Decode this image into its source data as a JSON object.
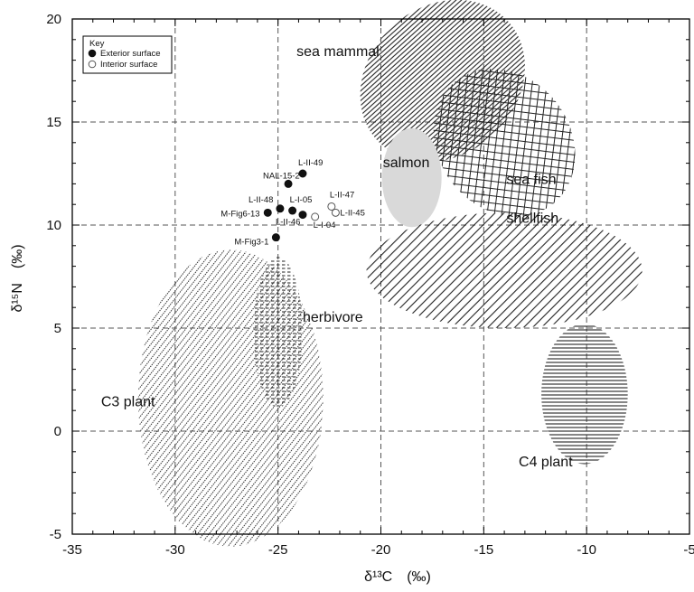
{
  "chart_data": {
    "type": "scatter",
    "title": "",
    "xlabel": "δ¹³C　(‰)",
    "ylabel": "δ¹⁵N　(‰)",
    "xlim": [
      -35,
      -5
    ],
    "ylim": [
      -5,
      20
    ],
    "xticks": [
      -35,
      -30,
      -25,
      -20,
      -15,
      -10,
      -5
    ],
    "yticks": [
      -5,
      0,
      5,
      10,
      15,
      20
    ],
    "xtick_labels": [
      "-35",
      "-30",
      "-25",
      "-20",
      "-15",
      "-10",
      "-5"
    ],
    "ytick_labels": [
      "-5",
      "0",
      "5",
      "10",
      "15",
      "20"
    ],
    "grid": true,
    "legend": {
      "title": "Key",
      "placement": "top-left",
      "entries": [
        {
          "label": "Exterior surface",
          "marker": "filled-circle"
        },
        {
          "label": "Interior surface",
          "marker": "open-circle"
        }
      ]
    },
    "series": [
      {
        "name": "Exterior surface",
        "marker": "filled",
        "points": [
          {
            "label": "L-II-49",
            "x": -23.8,
            "y": 12.5
          },
          {
            "label": "NAL-15-2",
            "x": -24.5,
            "y": 12.0
          },
          {
            "label": "L-II-48",
            "x": -24.9,
            "y": 10.8
          },
          {
            "label": "L-I-05",
            "x": -24.3,
            "y": 10.7
          },
          {
            "label": "L-II-46",
            "x": -23.8,
            "y": 10.5
          },
          {
            "label": "M-Fig6-13",
            "x": -25.5,
            "y": 10.6
          },
          {
            "label": "M-Fig3-1",
            "x": -25.1,
            "y": 9.4
          }
        ]
      },
      {
        "name": "Interior surface",
        "marker": "open",
        "points": [
          {
            "label": "L-II-47",
            "x": -22.4,
            "y": 10.9
          },
          {
            "label": "L-II-45",
            "x": -22.2,
            "y": 10.6
          },
          {
            "label": "L-I-04",
            "x": -23.2,
            "y": 10.4
          }
        ]
      }
    ],
    "regions": [
      {
        "label": "sea mammal",
        "pattern": "horizontal-hatch",
        "center": [
          -17.0,
          17.0
        ],
        "radii": [
          4.3,
          3.6
        ],
        "rotation": 42
      },
      {
        "label": "sea fish",
        "pattern": "cross-hatch",
        "center": [
          -14.0,
          14.0
        ],
        "radii": [
          3.2,
          3.8
        ],
        "rotation": 38
      },
      {
        "label": "salmon",
        "pattern": "grey-fill",
        "center": [
          -18.5,
          12.3
        ],
        "radii": [
          1.45,
          2.4
        ],
        "rotation": 0
      },
      {
        "label": "shellfish",
        "pattern": "diagonal-hatch",
        "center": [
          -14.0,
          7.8
        ],
        "radii": [
          6.7,
          2.8
        ],
        "rotation": 0
      },
      {
        "label": "herbivore",
        "pattern": "dashed-hatch",
        "center": [
          -25.0,
          4.8
        ],
        "radii": [
          1.2,
          3.65
        ],
        "rotation": 0
      },
      {
        "label": "C3 plant",
        "pattern": "dotted-diagonal-hatch",
        "center": [
          -27.3,
          1.6
        ],
        "radii": [
          4.5,
          7.2
        ],
        "rotation": 0
      },
      {
        "label": "C4 plant",
        "pattern": "horizontal-hatch",
        "center": [
          -10.1,
          1.8
        ],
        "radii": [
          2.1,
          3.4
        ],
        "rotation": 0
      }
    ]
  }
}
